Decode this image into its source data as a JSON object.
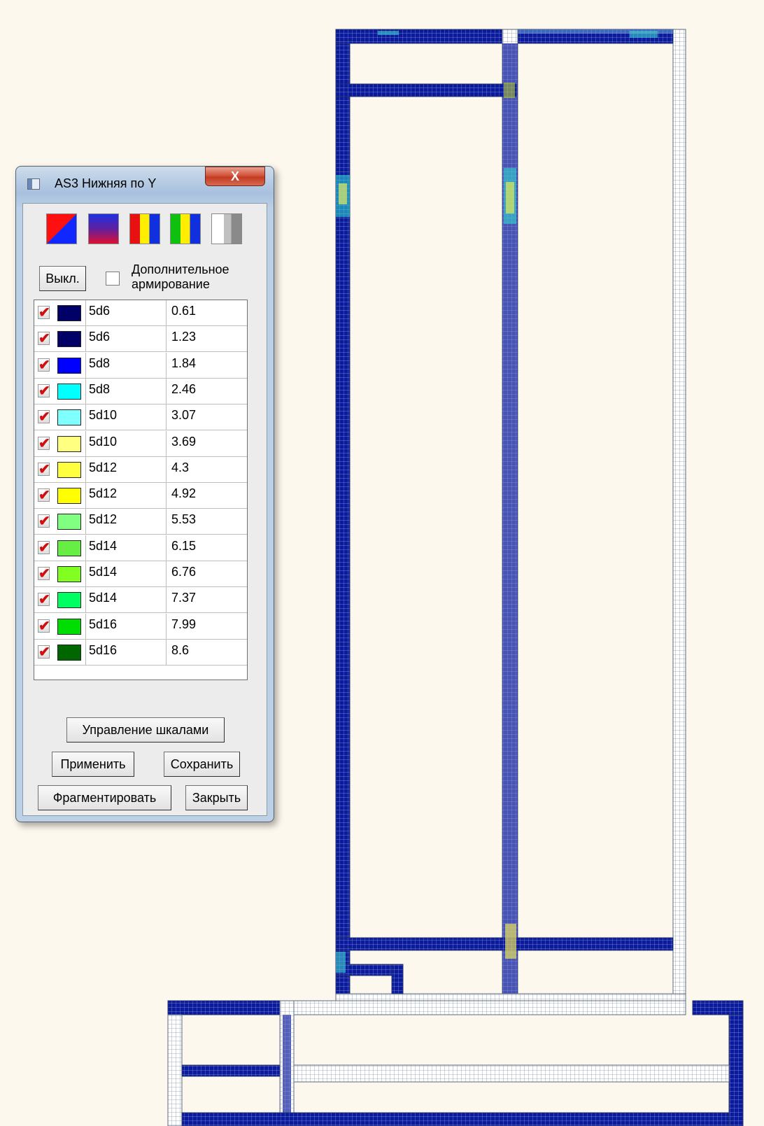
{
  "dialog": {
    "title": "AS3 Нижняя по Y",
    "close_label": "X",
    "palette_icons": [
      "diagonal-red-blue-icon",
      "gradient-blue-red-icon",
      "stripes-red-yellow-blue-icon",
      "stripes-green-yellow-blue-icon",
      "gradient-gray-icon"
    ],
    "off_button": "Выкл.",
    "extra_reinforcement": {
      "line1": "Дополнительное",
      "line2": "армирование",
      "checked": false
    },
    "scale_rows": [
      {
        "checked": true,
        "color": "#000066",
        "label": "5d6",
        "value": "0.61"
      },
      {
        "checked": true,
        "color": "#000066",
        "label": "5d6",
        "value": "1.23"
      },
      {
        "checked": true,
        "color": "#0000ff",
        "label": "5d8",
        "value": "1.84"
      },
      {
        "checked": true,
        "color": "#00ffff",
        "label": "5d8",
        "value": "2.46"
      },
      {
        "checked": true,
        "color": "#80ffff",
        "label": "5d10",
        "value": "3.07"
      },
      {
        "checked": true,
        "color": "#ffff80",
        "label": "5d10",
        "value": "3.69"
      },
      {
        "checked": true,
        "color": "#ffff40",
        "label": "5d12",
        "value": "4.3"
      },
      {
        "checked": true,
        "color": "#ffff00",
        "label": "5d12",
        "value": "4.92"
      },
      {
        "checked": true,
        "color": "#80ff80",
        "label": "5d12",
        "value": "5.53"
      },
      {
        "checked": true,
        "color": "#66ee44",
        "label": "5d14",
        "value": "6.15"
      },
      {
        "checked": true,
        "color": "#80ff20",
        "label": "5d14",
        "value": "6.76"
      },
      {
        "checked": true,
        "color": "#00ff60",
        "label": "5d14",
        "value": "7.37"
      },
      {
        "checked": true,
        "color": "#00dd00",
        "label": "5d16",
        "value": "7.99"
      },
      {
        "checked": true,
        "color": "#006600",
        "label": "5d16",
        "value": "8.6"
      }
    ],
    "buttons": {
      "manage_scales": "Управление шкалами",
      "apply": "Применить",
      "save": "Сохранить",
      "fragment": "Фрагментировать",
      "close": "Закрыть"
    }
  },
  "colors": {
    "background": "#fdf8ee",
    "mesh_blue": "#0a1a9c",
    "mesh_gray": "#a7b0bc"
  }
}
